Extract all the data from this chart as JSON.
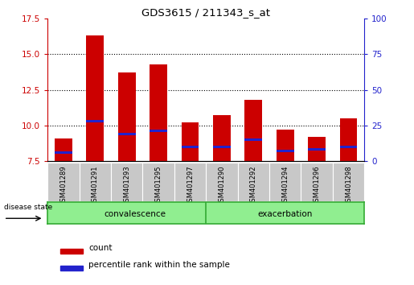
{
  "title": "GDS3615 / 211343_s_at",
  "samples": [
    "GSM401289",
    "GSM401291",
    "GSM401293",
    "GSM401295",
    "GSM401297",
    "GSM401290",
    "GSM401292",
    "GSM401294",
    "GSM401296",
    "GSM401298"
  ],
  "count_values": [
    9.1,
    16.3,
    13.7,
    14.3,
    10.2,
    10.7,
    11.8,
    9.7,
    9.2,
    10.5
  ],
  "percentile_values": [
    8.1,
    10.3,
    9.4,
    9.6,
    8.5,
    8.5,
    9.0,
    8.2,
    8.3,
    8.5
  ],
  "blue_bar_height": 0.18,
  "base_value": 7.5,
  "ylim_left": [
    7.5,
    17.5
  ],
  "ylim_right": [
    0,
    100
  ],
  "yticks_left": [
    7.5,
    10.0,
    12.5,
    15.0,
    17.5
  ],
  "yticks_right": [
    0,
    25,
    50,
    75,
    100
  ],
  "convalescence_count": 5,
  "exacerbation_count": 5,
  "bar_color_red": "#cc0000",
  "bar_color_blue": "#2222cc",
  "group_bg_color": "#90ee90",
  "tick_label_bg": "#c8c8c8",
  "axis_color_left": "#cc0000",
  "axis_color_right": "#2222cc",
  "grid_yticks": [
    10.0,
    12.5,
    15.0
  ],
  "bar_width": 0.55
}
